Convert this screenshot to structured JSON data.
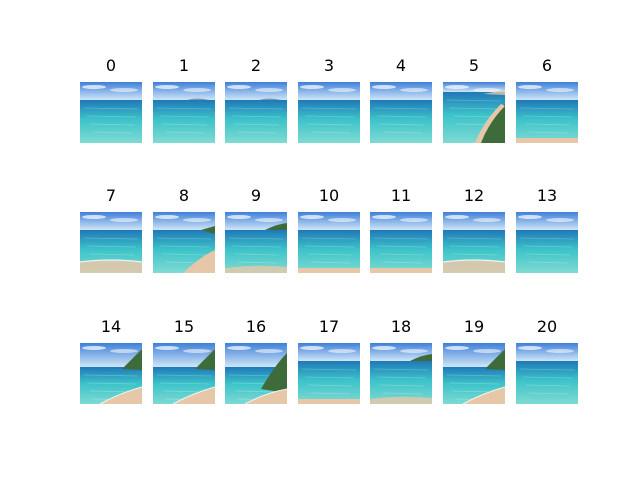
{
  "panels": [
    {
      "label": "0",
      "variant": "open-sea"
    },
    {
      "label": "1",
      "variant": "sea-far-island"
    },
    {
      "label": "2",
      "variant": "open-sea-mountains"
    },
    {
      "label": "3",
      "variant": "open-sea"
    },
    {
      "label": "4",
      "variant": "sea-waves"
    },
    {
      "label": "5",
      "variant": "bay-headland-right"
    },
    {
      "label": "6",
      "variant": "sea-sand-strip"
    },
    {
      "label": "7",
      "variant": "shoreline"
    },
    {
      "label": "8",
      "variant": "beach-diagonal"
    },
    {
      "label": "9",
      "variant": "sea-island-right"
    },
    {
      "label": "10",
      "variant": "sea-sand-strip"
    },
    {
      "label": "11",
      "variant": "sea-sand-strip"
    },
    {
      "label": "12",
      "variant": "shoreline"
    },
    {
      "label": "13",
      "variant": "open-sea"
    },
    {
      "label": "14",
      "variant": "beach-cliff-right"
    },
    {
      "label": "15",
      "variant": "beach-cliff-right"
    },
    {
      "label": "16",
      "variant": "beach-cliff-right-large"
    },
    {
      "label": "17",
      "variant": "sea-sand-strip"
    },
    {
      "label": "18",
      "variant": "sea-island-right"
    },
    {
      "label": "19",
      "variant": "beach-cliff-right"
    },
    {
      "label": "20",
      "variant": "open-sea"
    }
  ],
  "colors": {
    "sky_top": "#3f7fd9",
    "sky_bottom": "#cfe6f7",
    "sea_deep": "#1f78b8",
    "sea_turquoise": "#3cc3c9",
    "sea_shallow": "#7fdad3",
    "sand": "#e6c7a8",
    "cliff": "#3d6b3a",
    "cloud": "#ffffff"
  }
}
